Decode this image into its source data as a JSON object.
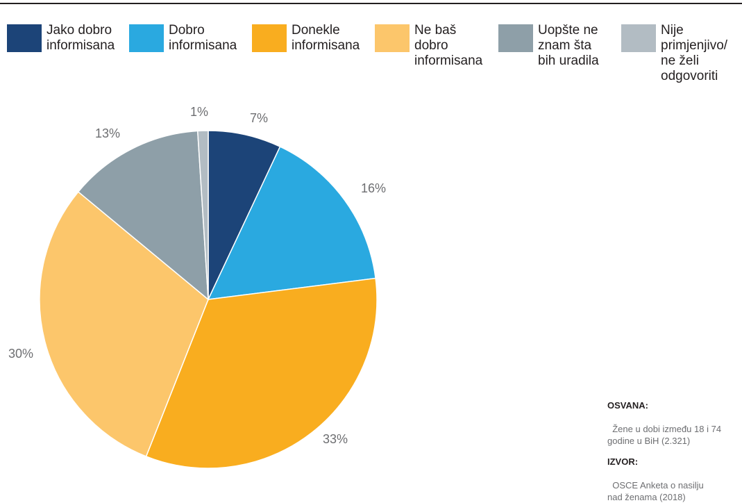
{
  "chart_data": {
    "type": "pie",
    "slices": [
      {
        "label": "Jako dobro\ninformisana",
        "value": 7,
        "display": "7%",
        "color": "#1c4478"
      },
      {
        "label": "Dobro\ninformisana",
        "value": 16,
        "display": "16%",
        "color": "#2aa9e0"
      },
      {
        "label": "Donekle\ninformisana",
        "value": 33,
        "display": "33%",
        "color": "#f9ad1f"
      },
      {
        "label": "Ne baš\ndobro\ninformisana",
        "value": 30,
        "display": "30%",
        "color": "#fcc66b"
      },
      {
        "label": "Uopšte ne\nznam šta\nbih uradila",
        "value": 13,
        "display": "13%",
        "color": "#8e9fa8"
      },
      {
        "label": "Nije\nprimjenjivo/\nne želi\nodgovoriti",
        "value": 1,
        "display": "1%",
        "color": "#b2bcc3"
      }
    ],
    "legend_position": "top"
  },
  "notes": {
    "sample_title": "OSVANA:",
    "sample_text": "Žene u dobi između 18 i 74\ngodine u BiH (2.321)",
    "source_title": "IZVOR:",
    "source_text": "OSCE Anketa o nasilju\nnad ženama (2018)"
  }
}
